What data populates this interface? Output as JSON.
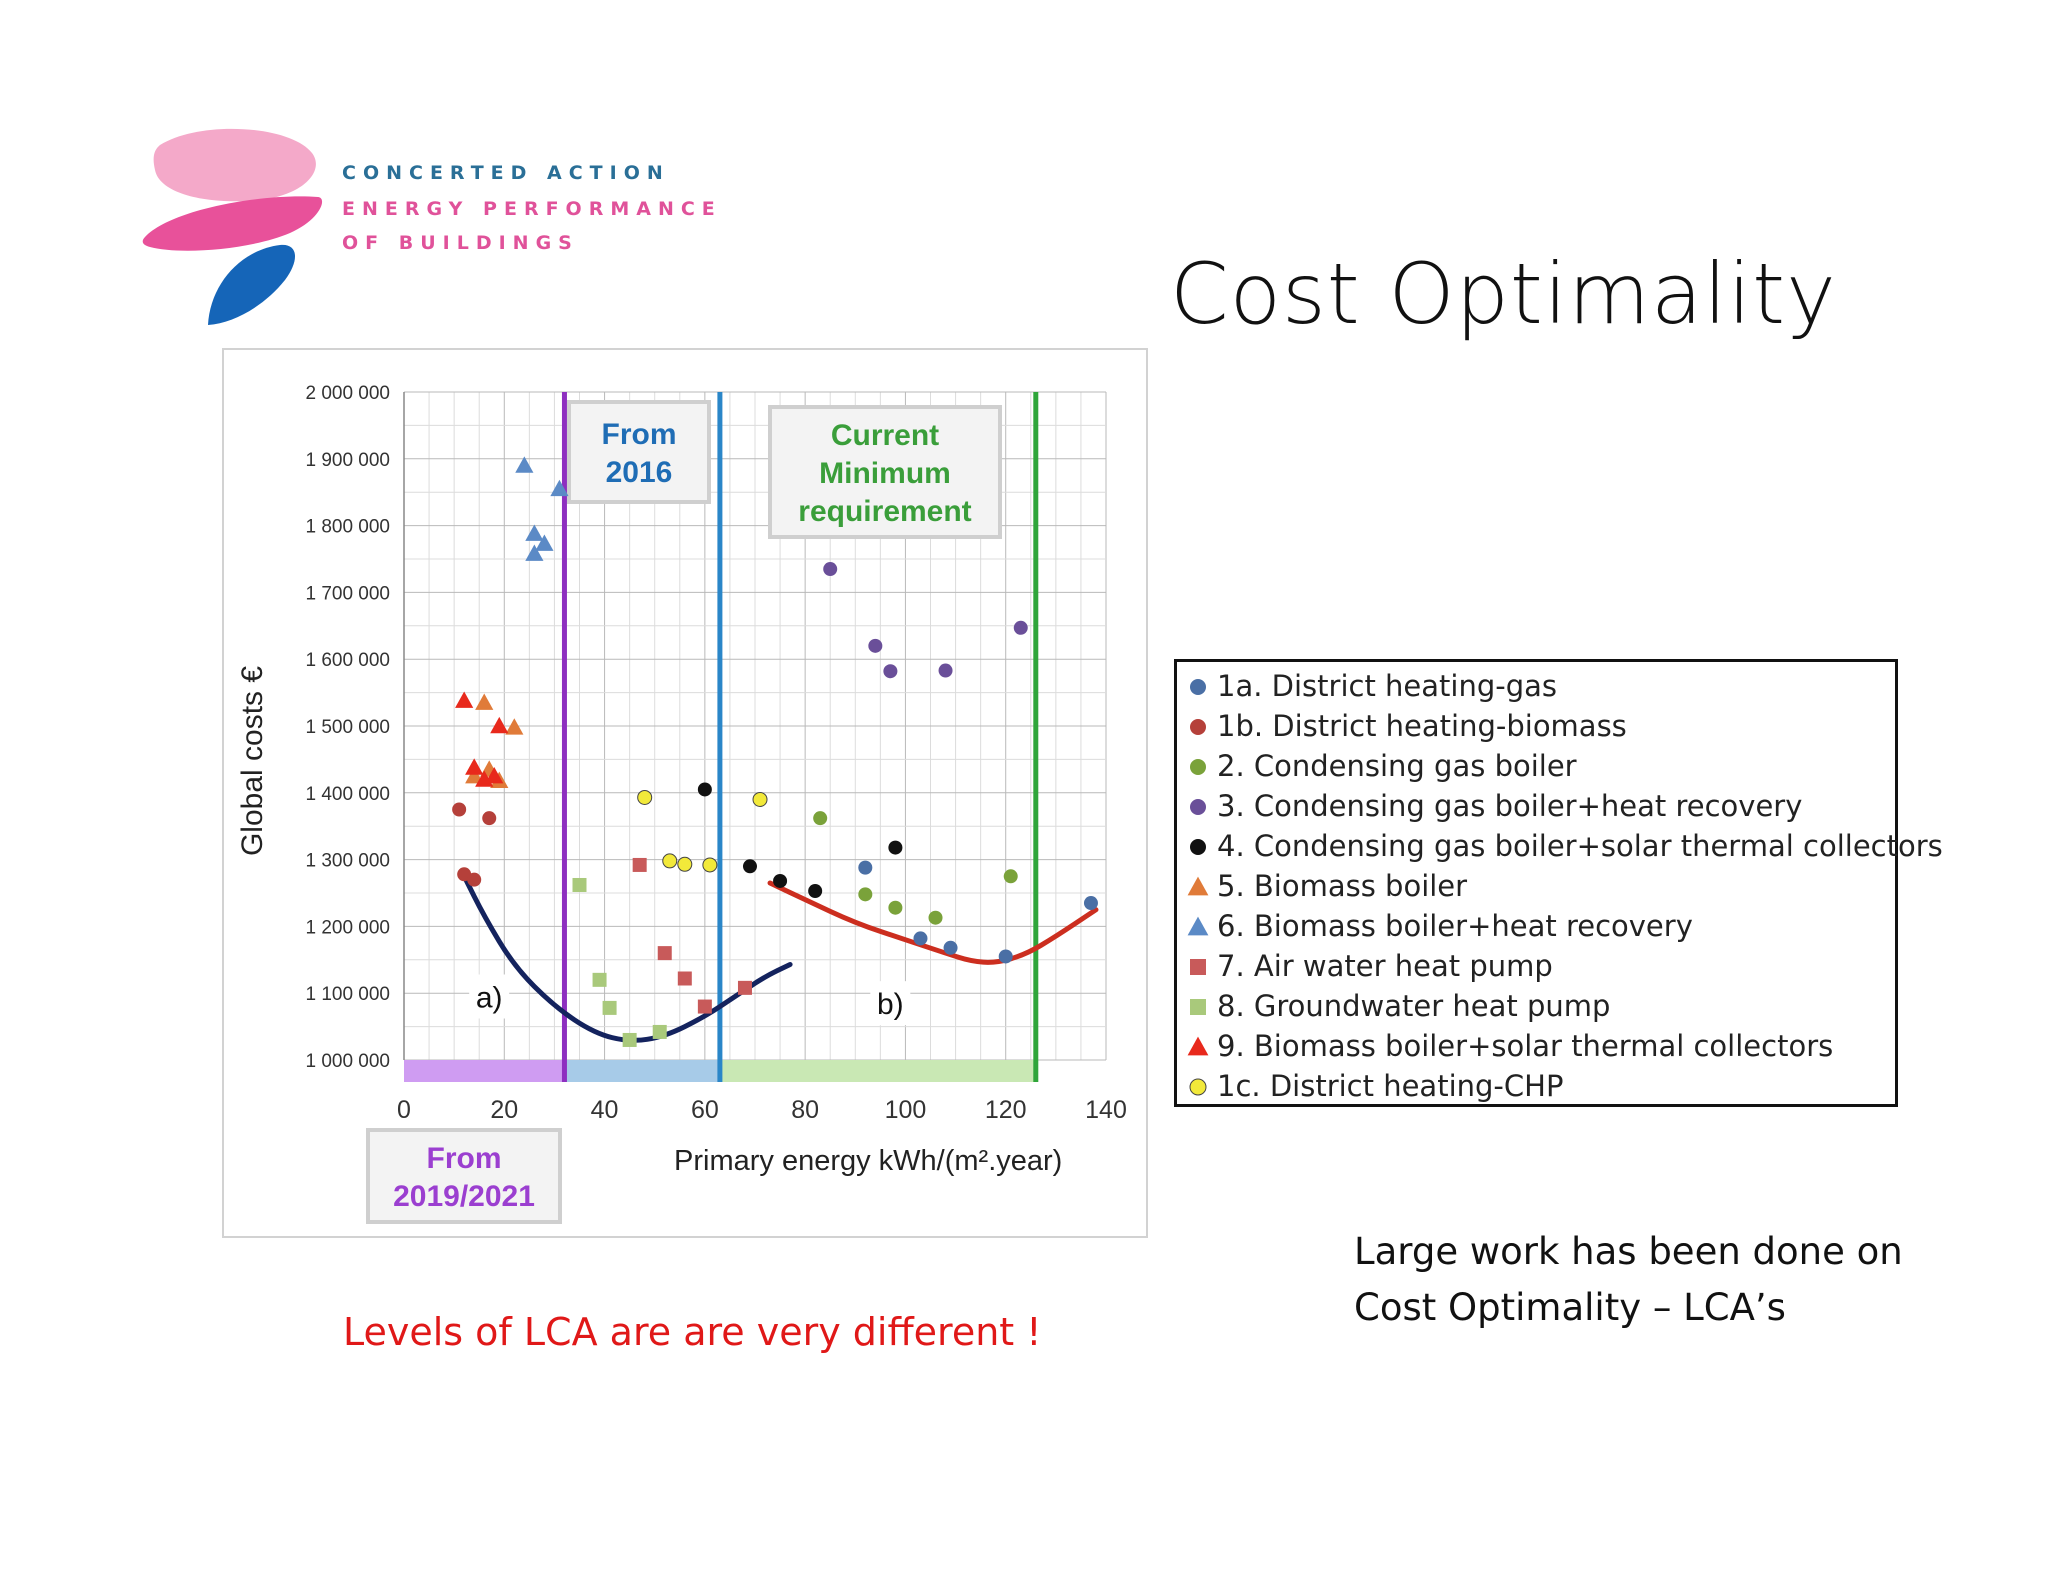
{
  "logo": {
    "line1": "CONCERTED ACTION",
    "line2": "ENERGY PERFORMANCE",
    "line3": "OF BUILDINGS",
    "colors": {
      "pink_light": "#f4a9c9",
      "pink": "#e8519a",
      "blue": "#1565b8"
    }
  },
  "slide_title": "Cost Optimality",
  "note_right": "Large work has been done on Cost Optimality – LCA’s",
  "note_left": "Levels of LCA are are very different !",
  "chart_data": {
    "type": "scatter",
    "ylabel": "Global costs €",
    "xlabel": "Primary energy kWh/(m².year)",
    "x_ticks": [
      "0",
      "20",
      "40",
      "60",
      "80",
      "100",
      "120",
      "140"
    ],
    "y_ticks": [
      "1 000 000",
      "1 100 000",
      "1 200 000",
      "1 300 000",
      "1 400 000",
      "1 500 000",
      "1 600 000",
      "1 700 000",
      "1 800 000",
      "1 900 000",
      "2 000 000"
    ],
    "xlim": [
      0,
      140
    ],
    "ylim": [
      1000000,
      2000000
    ],
    "grid": true,
    "legend_placement": "right, outside chart",
    "regions": [
      {
        "label": "From 2019/2021",
        "x_start": 0,
        "x_end": 32,
        "color": "#cf9cf2",
        "line_color": "#8e2fc0"
      },
      {
        "label": "From 2016",
        "x_start": 32,
        "x_end": 63,
        "color": "#a7cbe8",
        "line_color": "#2a86c8"
      },
      {
        "label": "Current Minimum requirement",
        "x_start": 63,
        "x_end": 126,
        "color": "#c9e8b4",
        "line_color": "#2fa53a"
      }
    ],
    "region_label_colors": {
      "From 2019/2021": "#9b3fd0",
      "From 2016": "#1f6db5",
      "Current Minimum requirement": "#3a9e3a"
    },
    "curves": [
      {
        "label": "a)",
        "color": "#14235e",
        "points": [
          [
            12,
            1275000
          ],
          [
            16,
            1215000
          ],
          [
            22,
            1140000
          ],
          [
            30,
            1080000
          ],
          [
            38,
            1040000
          ],
          [
            45,
            1027000
          ],
          [
            52,
            1035000
          ],
          [
            60,
            1065000
          ],
          [
            66,
            1095000
          ],
          [
            72,
            1125000
          ],
          [
            77,
            1143000
          ]
        ]
      },
      {
        "label": "b)",
        "color": "#cc2e1f",
        "points": [
          [
            73,
            1265000
          ],
          [
            80,
            1240000
          ],
          [
            90,
            1205000
          ],
          [
            100,
            1180000
          ],
          [
            108,
            1160000
          ],
          [
            113,
            1148000
          ],
          [
            118,
            1145000
          ],
          [
            124,
            1158000
          ],
          [
            130,
            1185000
          ],
          [
            138,
            1225000
          ]
        ]
      }
    ],
    "series": [
      {
        "name": "1a. District heating-gas",
        "marker": "circle",
        "color": "#4a6fa5",
        "points": [
          [
            92,
            1288000
          ],
          [
            103,
            1182000
          ],
          [
            109,
            1168000
          ],
          [
            120,
            1155000
          ],
          [
            137,
            1235000
          ]
        ]
      },
      {
        "name": "1b. District heating-biomass",
        "marker": "circle",
        "color": "#b5403a",
        "points": [
          [
            11,
            1375000
          ],
          [
            12,
            1278000
          ],
          [
            14,
            1270000
          ],
          [
            17,
            1362000
          ]
        ]
      },
      {
        "name": "2. Condensing gas boiler",
        "marker": "circle",
        "color": "#7aa23a",
        "points": [
          [
            83,
            1362000
          ],
          [
            92,
            1248000
          ],
          [
            98,
            1228000
          ],
          [
            106,
            1213000
          ],
          [
            121,
            1275000
          ]
        ]
      },
      {
        "name": "3. Condensing gas boiler+heat recovery",
        "marker": "circle",
        "color": "#6a4f99",
        "points": [
          [
            85,
            1735000
          ],
          [
            94,
            1620000
          ],
          [
            97,
            1582000
          ],
          [
            108,
            1583000
          ],
          [
            123,
            1647000
          ]
        ]
      },
      {
        "name": "4. Condensing gas boiler+solar thermal collectors",
        "marker": "circle",
        "color": "#111111",
        "points": [
          [
            60,
            1405000
          ],
          [
            69,
            1290000
          ],
          [
            75,
            1268000
          ],
          [
            82,
            1253000
          ],
          [
            98,
            1318000
          ]
        ]
      },
      {
        "name": "5. Biomass boiler",
        "marker": "triangle",
        "color": "#e07b39",
        "points": [
          [
            16,
            1535000
          ],
          [
            22,
            1498000
          ],
          [
            17,
            1435000
          ],
          [
            19,
            1418000
          ],
          [
            14,
            1425000
          ]
        ]
      },
      {
        "name": "6. Biomass boiler+heat recovery",
        "marker": "triangle",
        "color": "#5b8ac6",
        "points": [
          [
            24,
            1890000
          ],
          [
            31,
            1855000
          ],
          [
            26,
            1788000
          ],
          [
            28,
            1773000
          ],
          [
            26,
            1758000
          ]
        ]
      },
      {
        "name": "7. Air water heat pump",
        "marker": "square",
        "color": "#c85a5a",
        "points": [
          [
            47,
            1292000
          ],
          [
            52,
            1160000
          ],
          [
            56,
            1122000
          ],
          [
            60,
            1080000
          ],
          [
            68,
            1108000
          ]
        ]
      },
      {
        "name": "8. Groundwater heat pump",
        "marker": "square",
        "color": "#a9c97b",
        "points": [
          [
            35,
            1262000
          ],
          [
            39,
            1120000
          ],
          [
            41,
            1078000
          ],
          [
            45,
            1030000
          ],
          [
            51,
            1042000
          ]
        ]
      },
      {
        "name": "9. Biomass boiler+solar thermal collectors",
        "marker": "triangle",
        "color": "#e8291c",
        "points": [
          [
            12,
            1538000
          ],
          [
            19,
            1500000
          ],
          [
            14,
            1438000
          ],
          [
            16,
            1420000
          ],
          [
            18,
            1425000
          ]
        ]
      },
      {
        "name": "1c. District heating-CHP",
        "marker": "circle",
        "color": "#f2e93a",
        "points": [
          [
            48,
            1393000
          ],
          [
            53,
            1298000
          ],
          [
            56,
            1293000
          ],
          [
            61,
            1292000
          ],
          [
            71,
            1390000
          ]
        ]
      }
    ]
  }
}
